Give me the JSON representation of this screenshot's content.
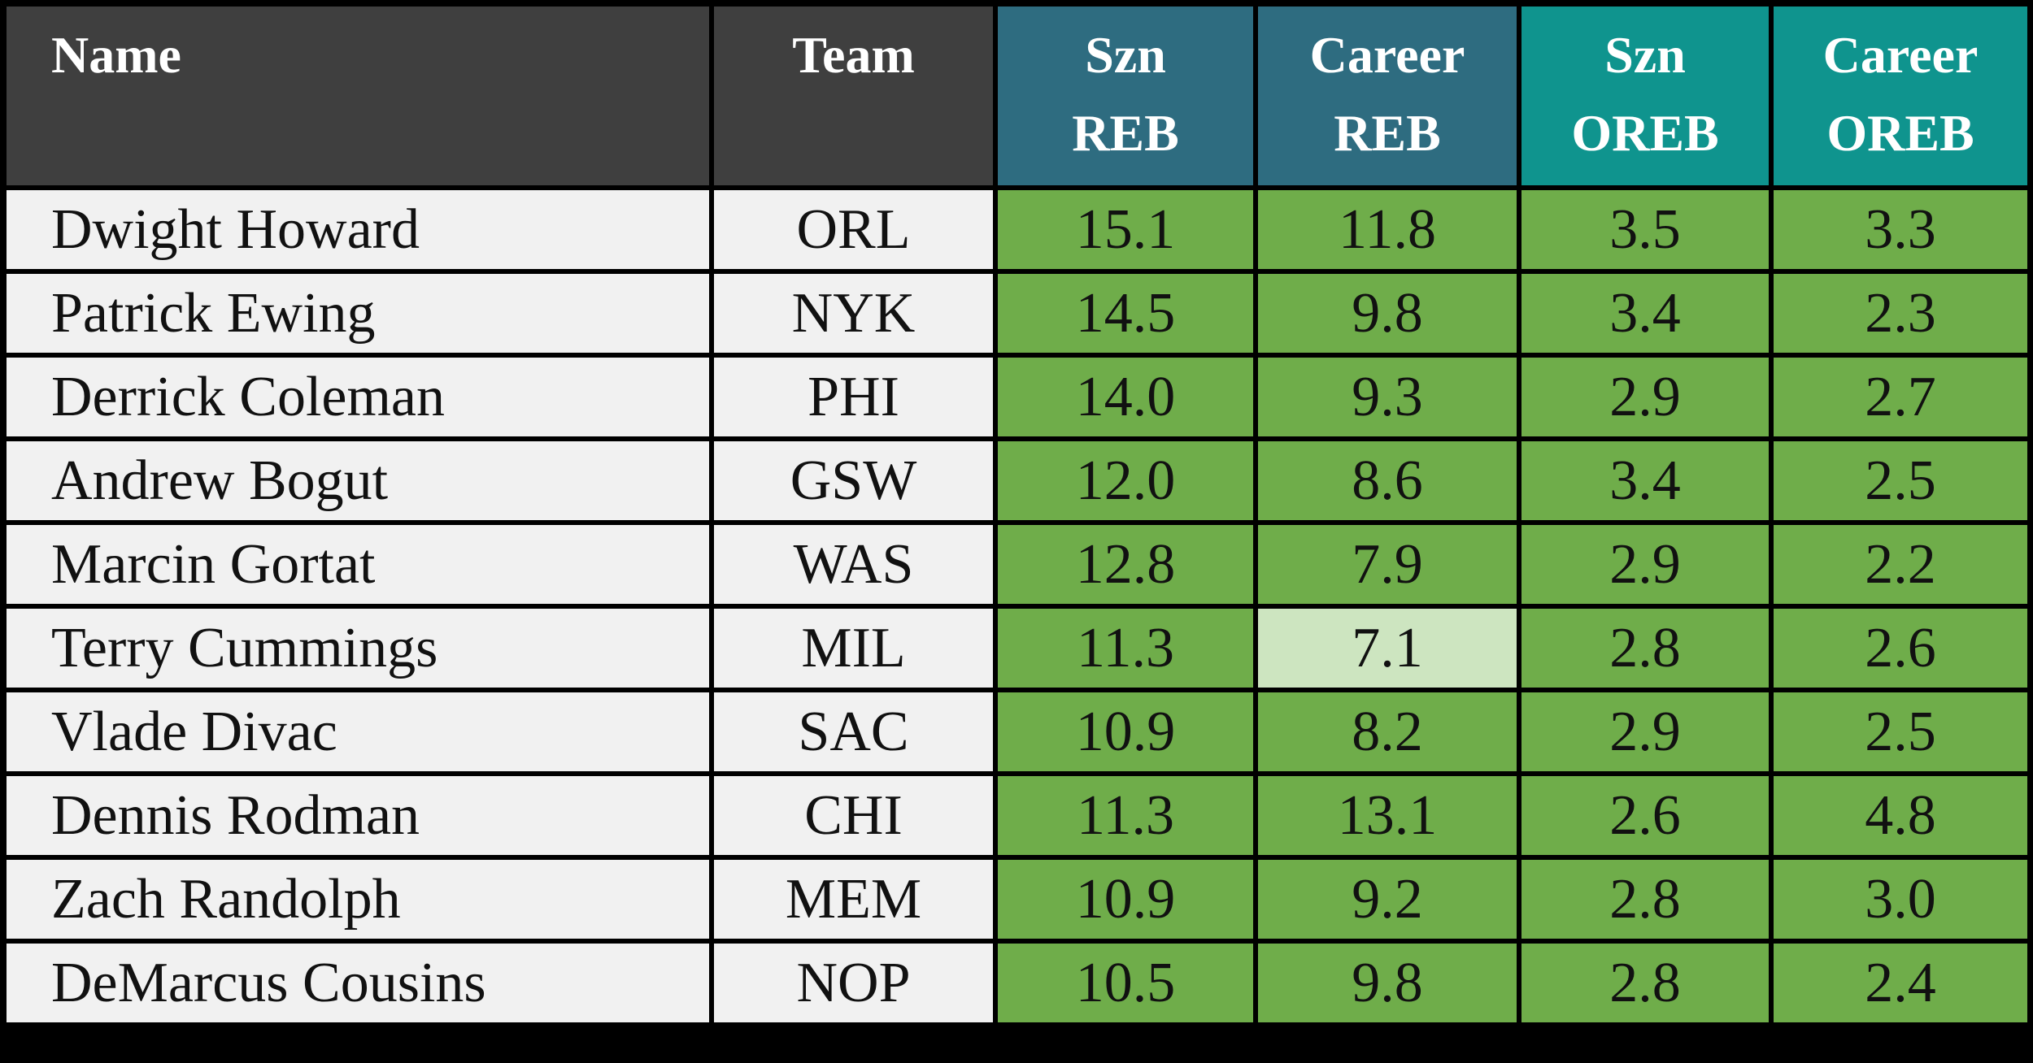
{
  "header": {
    "name": "Name",
    "team": "Team",
    "szn_reb": {
      "line1": "Szn",
      "line2": "REB"
    },
    "career_reb": {
      "line1": "Career",
      "line2": "REB"
    },
    "szn_oreb": {
      "line1": "Szn",
      "line2": "OREB"
    },
    "career_oreb": {
      "line1": "Career",
      "line2": "OREB"
    }
  },
  "chart_data": {
    "type": "table",
    "columns": [
      "Name",
      "Team",
      "Szn REB",
      "Career REB",
      "Szn OREB",
      "Career OREB"
    ],
    "rows": [
      [
        "Dwight Howard",
        "ORL",
        "15.1",
        "11.8",
        "3.5",
        "3.3"
      ],
      [
        "Patrick Ewing",
        "NYK",
        "14.5",
        "9.8",
        "3.4",
        "2.3"
      ],
      [
        "Derrick Coleman",
        "PHI",
        "14.0",
        "9.3",
        "2.9",
        "2.7"
      ],
      [
        "Andrew Bogut",
        "GSW",
        "12.0",
        "8.6",
        "3.4",
        "2.5"
      ],
      [
        "Marcin Gortat",
        "WAS",
        "12.8",
        "7.9",
        "2.9",
        "2.2"
      ],
      [
        "Terry Cummings",
        "MIL",
        "11.3",
        "7.1",
        "2.8",
        "2.6"
      ],
      [
        "Vlade Divac",
        "SAC",
        "10.9",
        "8.2",
        "2.9",
        "2.5"
      ],
      [
        "Dennis Rodman",
        "CHI",
        "11.3",
        "13.1",
        "2.6",
        "4.8"
      ],
      [
        "Zach Randolph",
        "MEM",
        "10.9",
        "9.2",
        "2.8",
        "3.0"
      ],
      [
        "DeMarcus Cousins",
        "NOP",
        "10.5",
        "9.8",
        "2.8",
        "2.4"
      ]
    ],
    "highlighted_cell": {
      "row": "Terry Cummings",
      "column": "Career REB",
      "value": "7.1"
    },
    "legend_position": "none",
    "grid": "on"
  },
  "colors": {
    "page_background": "#000000",
    "header_dark": "#3f3f3f",
    "header_reb_teal": "#2e6c80",
    "header_oreb_teal": "#0f948e",
    "stat_cell_green": "#6fad4a",
    "highlight_light_green": "#cde5c0",
    "name_cell_gray": "#f1f1f1",
    "header_text": "#ffffff",
    "body_text": "#111111",
    "gridline": "#000000"
  }
}
